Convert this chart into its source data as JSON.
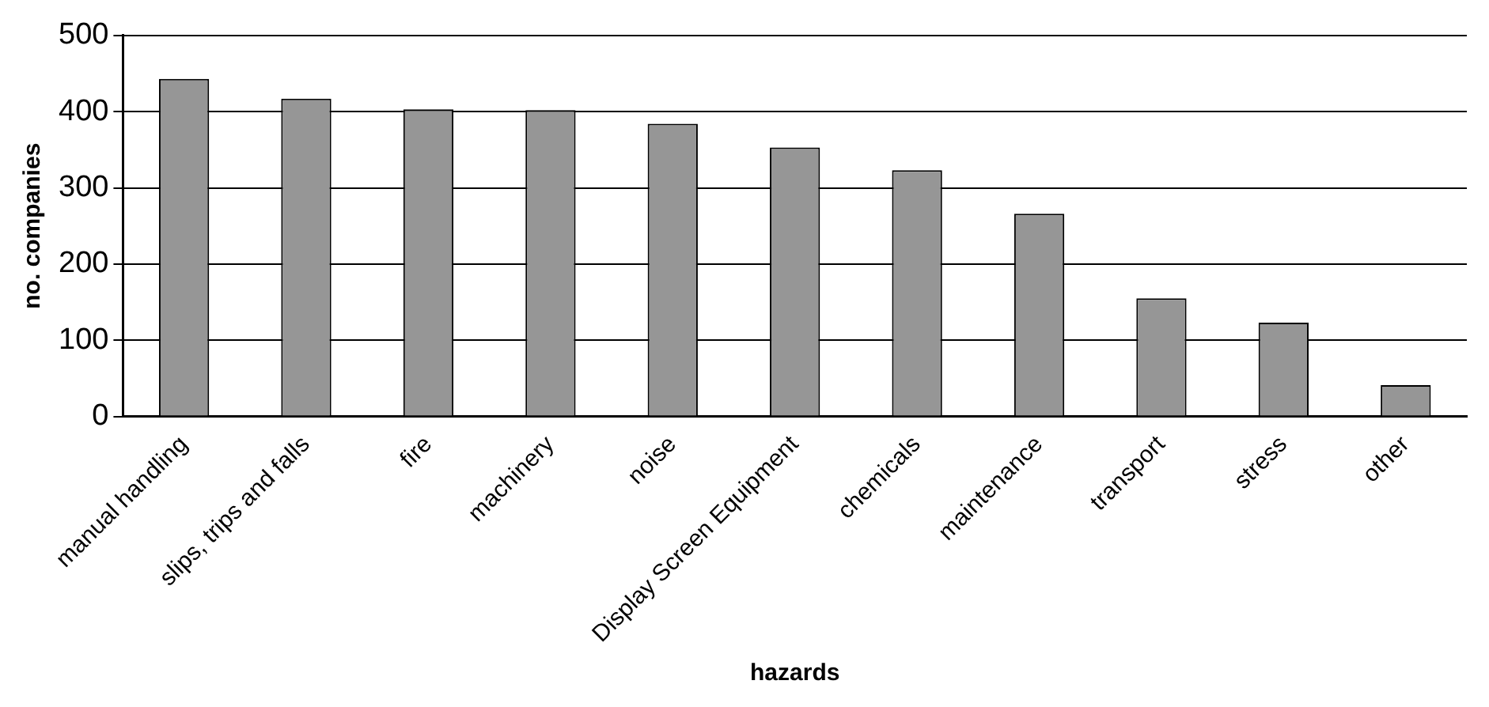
{
  "chart_data": {
    "type": "bar",
    "xlabel": "hazards",
    "ylabel": "no. companies",
    "categories": [
      "manual handling",
      "slips, trips and falls",
      "fire",
      "machinery",
      "noise",
      "Display Screen Equipment",
      "chemicals",
      "maintenance",
      "transport",
      "stress",
      "other"
    ],
    "values": [
      443,
      417,
      403,
      402,
      384,
      353,
      323,
      266,
      155,
      123,
      41
    ],
    "color": "#969696",
    "ylim": [
      0,
      500
    ],
    "yticks": [
      0,
      100,
      200,
      300,
      400,
      500
    ],
    "grid": "y"
  }
}
